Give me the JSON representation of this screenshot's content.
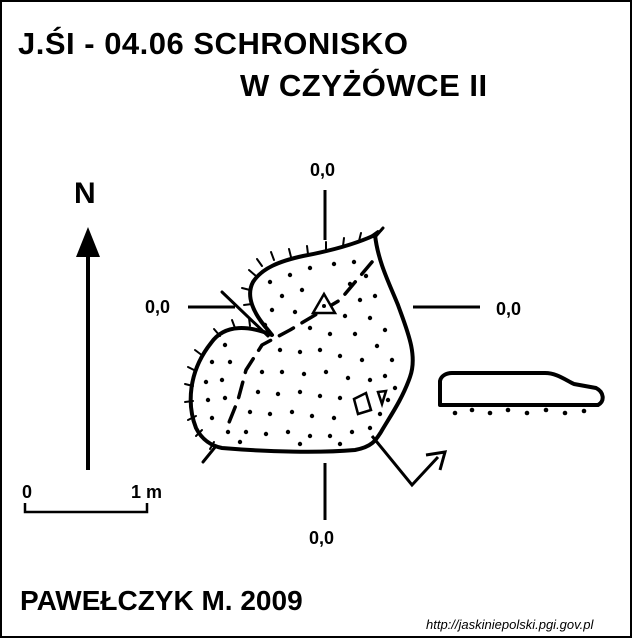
{
  "title": {
    "line1": "J.ŚI - 04.06  SCHRONISKO",
    "line2": "W CZYŻÓWCE II"
  },
  "north_label": "N",
  "scale_bar": {
    "start_label": "0",
    "end_label": "1 m"
  },
  "measurements": {
    "top": "0,0",
    "left": "0,0",
    "right": "0,0",
    "bottom": "0,0"
  },
  "author": "PAWEŁCZYK M. 2009",
  "source_url": "http://jaskiniepolski.pgi.gov.pl",
  "colors": {
    "ink": "#000000",
    "background": "#ffffff"
  }
}
